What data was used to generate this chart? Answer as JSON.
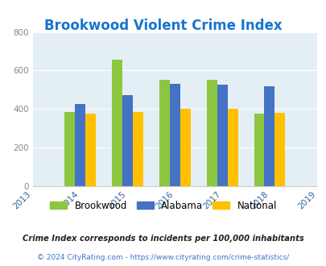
{
  "title": "Brookwood Violent Crime Index",
  "all_years": [
    2013,
    2014,
    2015,
    2016,
    2017,
    2018,
    2019
  ],
  "data_years": [
    2014,
    2015,
    2016,
    2017,
    2018
  ],
  "brookwood": [
    385,
    658,
    553,
    550,
    375
  ],
  "alabama": [
    428,
    473,
    530,
    525,
    520
  ],
  "national": [
    378,
    383,
    400,
    400,
    382
  ],
  "colors": {
    "brookwood": "#8DC63F",
    "alabama": "#4472C4",
    "national": "#FFC000"
  },
  "ylim": [
    0,
    800
  ],
  "yticks": [
    0,
    200,
    400,
    600,
    800
  ],
  "bg_color": "#E4EFF5",
  "legend_labels": [
    "Brookwood",
    "Alabama",
    "National"
  ],
  "footnote1": "Crime Index corresponds to incidents per 100,000 inhabitants",
  "footnote2": "© 2024 CityRating.com - https://www.cityrating.com/crime-statistics/",
  "title_color": "#1874CD",
  "footnote1_color": "#222222",
  "footnote2_color": "#4472C4",
  "grid_color": "#FFFFFF",
  "bar_width": 0.22
}
